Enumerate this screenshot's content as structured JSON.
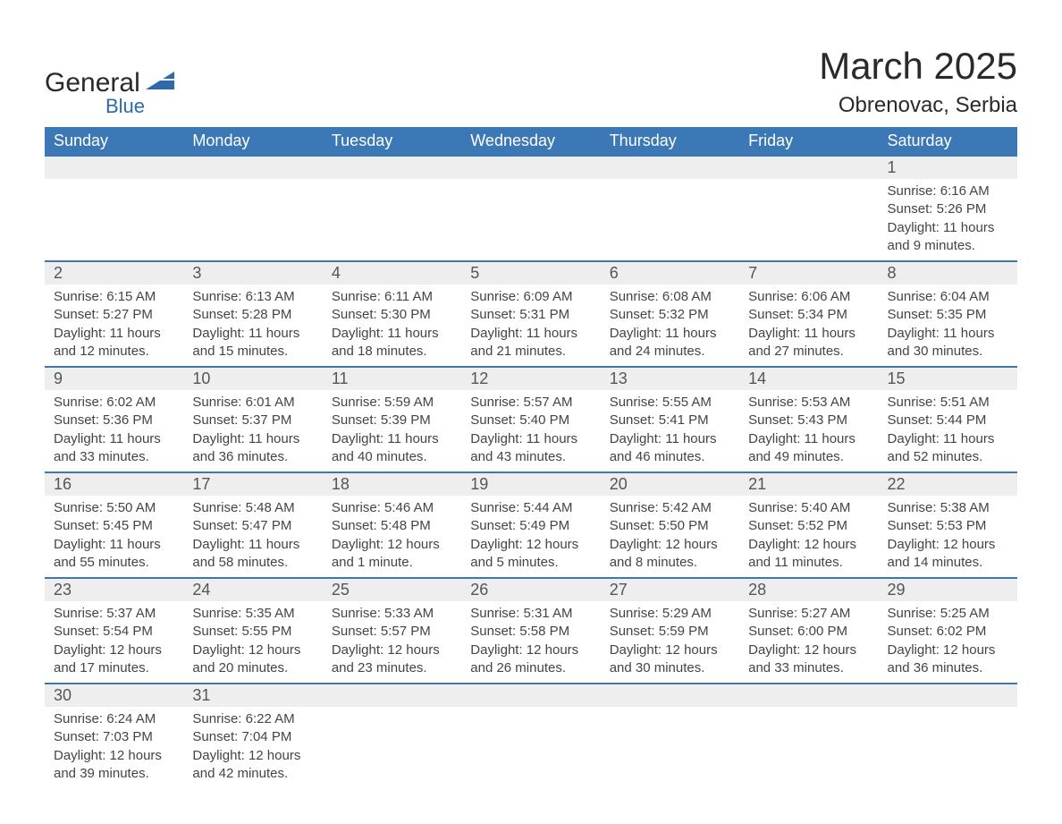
{
  "brand": {
    "name_main": "General",
    "name_sub": "Blue",
    "text_color": "#2a2a2a",
    "accent_color": "#2f6aa8"
  },
  "title": {
    "month": "March 2025",
    "location": "Obrenovac, Serbia"
  },
  "style": {
    "header_bg": "#3b78b5",
    "header_text": "#ffffff",
    "daynum_bg": "#eeeeee",
    "row_border": "#3b78b5",
    "body_text": "#444444",
    "page_bg": "#ffffff",
    "font_family": "Arial, Helvetica, sans-serif",
    "title_fontsize_pt": 32,
    "location_fontsize_pt": 18,
    "header_fontsize_pt": 14,
    "body_fontsize_pt": 11
  },
  "weekdays": [
    "Sunday",
    "Monday",
    "Tuesday",
    "Wednesday",
    "Thursday",
    "Friday",
    "Saturday"
  ],
  "labels": {
    "sunrise": "Sunrise:",
    "sunset": "Sunset:",
    "daylight": "Daylight:"
  },
  "weeks": [
    [
      null,
      null,
      null,
      null,
      null,
      null,
      {
        "day": "1",
        "sunrise": "6:16 AM",
        "sunset": "5:26 PM",
        "daylight": "11 hours and 9 minutes."
      }
    ],
    [
      {
        "day": "2",
        "sunrise": "6:15 AM",
        "sunset": "5:27 PM",
        "daylight": "11 hours and 12 minutes."
      },
      {
        "day": "3",
        "sunrise": "6:13 AM",
        "sunset": "5:28 PM",
        "daylight": "11 hours and 15 minutes."
      },
      {
        "day": "4",
        "sunrise": "6:11 AM",
        "sunset": "5:30 PM",
        "daylight": "11 hours and 18 minutes."
      },
      {
        "day": "5",
        "sunrise": "6:09 AM",
        "sunset": "5:31 PM",
        "daylight": "11 hours and 21 minutes."
      },
      {
        "day": "6",
        "sunrise": "6:08 AM",
        "sunset": "5:32 PM",
        "daylight": "11 hours and 24 minutes."
      },
      {
        "day": "7",
        "sunrise": "6:06 AM",
        "sunset": "5:34 PM",
        "daylight": "11 hours and 27 minutes."
      },
      {
        "day": "8",
        "sunrise": "6:04 AM",
        "sunset": "5:35 PM",
        "daylight": "11 hours and 30 minutes."
      }
    ],
    [
      {
        "day": "9",
        "sunrise": "6:02 AM",
        "sunset": "5:36 PM",
        "daylight": "11 hours and 33 minutes."
      },
      {
        "day": "10",
        "sunrise": "6:01 AM",
        "sunset": "5:37 PM",
        "daylight": "11 hours and 36 minutes."
      },
      {
        "day": "11",
        "sunrise": "5:59 AM",
        "sunset": "5:39 PM",
        "daylight": "11 hours and 40 minutes."
      },
      {
        "day": "12",
        "sunrise": "5:57 AM",
        "sunset": "5:40 PM",
        "daylight": "11 hours and 43 minutes."
      },
      {
        "day": "13",
        "sunrise": "5:55 AM",
        "sunset": "5:41 PM",
        "daylight": "11 hours and 46 minutes."
      },
      {
        "day": "14",
        "sunrise": "5:53 AM",
        "sunset": "5:43 PM",
        "daylight": "11 hours and 49 minutes."
      },
      {
        "day": "15",
        "sunrise": "5:51 AM",
        "sunset": "5:44 PM",
        "daylight": "11 hours and 52 minutes."
      }
    ],
    [
      {
        "day": "16",
        "sunrise": "5:50 AM",
        "sunset": "5:45 PM",
        "daylight": "11 hours and 55 minutes."
      },
      {
        "day": "17",
        "sunrise": "5:48 AM",
        "sunset": "5:47 PM",
        "daylight": "11 hours and 58 minutes."
      },
      {
        "day": "18",
        "sunrise": "5:46 AM",
        "sunset": "5:48 PM",
        "daylight": "12 hours and 1 minute."
      },
      {
        "day": "19",
        "sunrise": "5:44 AM",
        "sunset": "5:49 PM",
        "daylight": "12 hours and 5 minutes."
      },
      {
        "day": "20",
        "sunrise": "5:42 AM",
        "sunset": "5:50 PM",
        "daylight": "12 hours and 8 minutes."
      },
      {
        "day": "21",
        "sunrise": "5:40 AM",
        "sunset": "5:52 PM",
        "daylight": "12 hours and 11 minutes."
      },
      {
        "day": "22",
        "sunrise": "5:38 AM",
        "sunset": "5:53 PM",
        "daylight": "12 hours and 14 minutes."
      }
    ],
    [
      {
        "day": "23",
        "sunrise": "5:37 AM",
        "sunset": "5:54 PM",
        "daylight": "12 hours and 17 minutes."
      },
      {
        "day": "24",
        "sunrise": "5:35 AM",
        "sunset": "5:55 PM",
        "daylight": "12 hours and 20 minutes."
      },
      {
        "day": "25",
        "sunrise": "5:33 AM",
        "sunset": "5:57 PM",
        "daylight": "12 hours and 23 minutes."
      },
      {
        "day": "26",
        "sunrise": "5:31 AM",
        "sunset": "5:58 PM",
        "daylight": "12 hours and 26 minutes."
      },
      {
        "day": "27",
        "sunrise": "5:29 AM",
        "sunset": "5:59 PM",
        "daylight": "12 hours and 30 minutes."
      },
      {
        "day": "28",
        "sunrise": "5:27 AM",
        "sunset": "6:00 PM",
        "daylight": "12 hours and 33 minutes."
      },
      {
        "day": "29",
        "sunrise": "5:25 AM",
        "sunset": "6:02 PM",
        "daylight": "12 hours and 36 minutes."
      }
    ],
    [
      {
        "day": "30",
        "sunrise": "6:24 AM",
        "sunset": "7:03 PM",
        "daylight": "12 hours and 39 minutes."
      },
      {
        "day": "31",
        "sunrise": "6:22 AM",
        "sunset": "7:04 PM",
        "daylight": "12 hours and 42 minutes."
      },
      null,
      null,
      null,
      null,
      null
    ]
  ]
}
